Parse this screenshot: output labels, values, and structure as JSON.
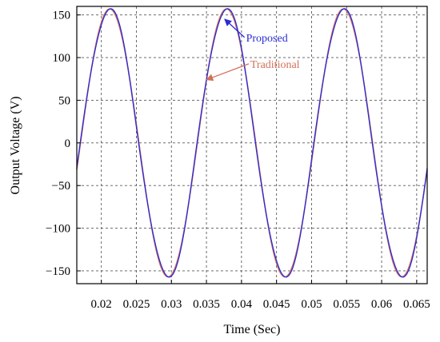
{
  "chart_data": {
    "type": "line",
    "xlabel": "Time (Sec)",
    "ylabel": "Output Voltage (V)",
    "xlim": [
      0.0165,
      0.0665
    ],
    "ylim": [
      -165,
      160
    ],
    "x_ticks": [
      0.02,
      0.025,
      0.03,
      0.035,
      0.04,
      0.045,
      0.05,
      0.055,
      0.06,
      0.065
    ],
    "x_tick_labels": [
      "0.02",
      "0.025",
      "0.03",
      "0.035",
      "0.04",
      "0.045",
      "0.05",
      "0.055",
      "0.06",
      "0.065"
    ],
    "y_ticks": [
      150,
      100,
      50,
      0,
      -50,
      -100,
      -150
    ],
    "y_tick_labels": [
      "150",
      "100",
      "50",
      "0",
      "−50",
      "−100",
      "−150"
    ],
    "grid": true,
    "grid_style": "dashed",
    "series": [
      {
        "name": "Traditional",
        "color": "#d2705a",
        "amplitude": 157,
        "period": 0.01667,
        "peak_times": [
          0.0212,
          0.0378,
          0.0545
        ],
        "trough_times": [
          0.0295,
          0.0462,
          0.0628
        ]
      },
      {
        "name": "Proposed",
        "color": "#2b2bd6",
        "amplitude": 157,
        "period": 0.01667,
        "peak_times": [
          0.0212,
          0.0378,
          0.0545
        ],
        "trough_times": [
          0.0295,
          0.0462,
          0.0628
        ]
      }
    ],
    "annotations": [
      {
        "text": "Proposed",
        "series": "Proposed",
        "color": "#2b2bd6",
        "label_at": [
          0.0402,
          119
        ],
        "arrow_to": [
          0.0376,
          145
        ]
      },
      {
        "text": "Traditional",
        "series": "Traditional",
        "color": "#d2705a",
        "label_at": [
          0.0408,
          88
        ],
        "arrow_to": [
          0.035,
          74
        ]
      }
    ]
  }
}
